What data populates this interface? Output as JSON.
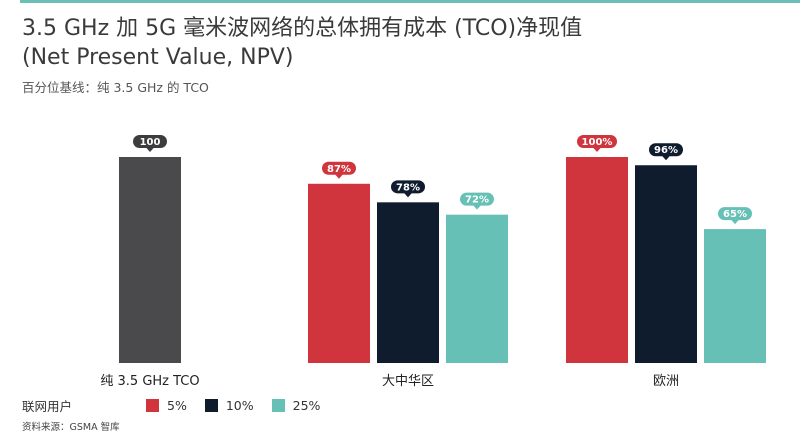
{
  "title_line1": "3.5 GHz 加 5G 毫米波网络的总体拥有成本 (TCO)净现值",
  "title_line2": "(Net Present Value, NPV)",
  "subtitle": "百分位基线：纯 3.5 GHz 的 TCO",
  "legend": {
    "title": "联网用户",
    "items": [
      {
        "label": "5%",
        "color": "#d0343c"
      },
      {
        "label": "10%",
        "color": "#0f1c2e"
      },
      {
        "label": "25%",
        "color": "#66c0b6"
      }
    ]
  },
  "source": "资料来源：GSMA 智库",
  "colors": {
    "baseline": "#4a4a4c",
    "accent_rule": "#6bbfb5"
  },
  "chart_data": {
    "type": "bar",
    "categories": [
      "纯 3.5 GHz TCO",
      "大中华区",
      "欧洲"
    ],
    "ylim": [
      0,
      100
    ],
    "title": "3.5 GHz 加 5G 毫米波网络的总体拥有成本 (TCO)净现值 (Net Present Value, NPV)",
    "subtitle": "百分位基线：纯 3.5 GHz 的 TCO",
    "xlabel": "",
    "ylabel": "",
    "grid": false,
    "legend_placement": "bottom-left",
    "baseline": {
      "category": "纯 3.5 GHz TCO",
      "value": 100,
      "label": "100"
    },
    "series": [
      {
        "name": "5%",
        "color": "#d0343c",
        "values": [
          null,
          87,
          100
        ],
        "labels": [
          "",
          "87%",
          "100%"
        ]
      },
      {
        "name": "10%",
        "color": "#0f1c2e",
        "values": [
          null,
          78,
          96
        ],
        "labels": [
          "",
          "78%",
          "96%"
        ]
      },
      {
        "name": "25%",
        "color": "#66c0b6",
        "values": [
          null,
          72,
          65
        ],
        "labels": [
          "",
          "72%",
          "65%"
        ]
      }
    ]
  }
}
